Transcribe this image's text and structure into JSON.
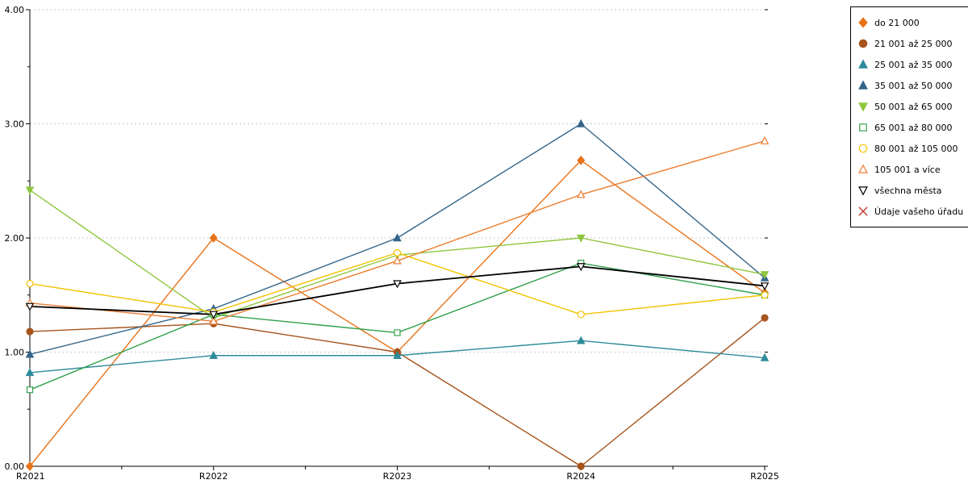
{
  "chart_data": {
    "type": "line",
    "x": [
      "R2021",
      "R2022",
      "R2023",
      "R2024",
      "R2025"
    ],
    "ylim": [
      0,
      4
    ],
    "yticks": [
      0,
      1,
      2,
      3,
      4
    ],
    "ytick_labels": [
      "0.00",
      "1.00",
      "2.00",
      "3.00",
      "4.00"
    ],
    "grid": "horizontal-dotted",
    "legend_position": "top-right",
    "series": [
      {
        "name": "do 21 000",
        "color": "#E8731A",
        "marker": "diamond",
        "fill": true,
        "values": [
          0.0,
          2.0,
          1.0,
          2.68,
          1.52
        ]
      },
      {
        "name": "21 001 až 25 000",
        "color": "#A6541C",
        "marker": "circle",
        "fill": true,
        "values": [
          1.18,
          1.25,
          1.0,
          0.0,
          1.3
        ]
      },
      {
        "name": "25 001 až 35 000",
        "color": "#2E8B9A",
        "marker": "triangle-up",
        "fill": true,
        "values": [
          0.82,
          0.97,
          0.97,
          1.1,
          0.95
        ]
      },
      {
        "name": "35 001 až 50 000",
        "color": "#33658A",
        "marker": "triangle-up",
        "fill": true,
        "values": [
          0.98,
          1.38,
          2.0,
          3.0,
          1.65
        ]
      },
      {
        "name": "50 001 až 65 000",
        "color": "#8FC63E",
        "marker": "triangle-down",
        "fill": true,
        "values": [
          2.42,
          1.3,
          1.85,
          2.0,
          1.68
        ]
      },
      {
        "name": "65 001 až 80 000",
        "color": "#2FA04B",
        "marker": "square",
        "fill": false,
        "values": [
          0.67,
          1.33,
          1.17,
          1.78,
          1.5
        ]
      },
      {
        "name": "80 001 až 105 000",
        "color": "#F2C200",
        "marker": "circle",
        "fill": false,
        "values": [
          1.6,
          1.35,
          1.87,
          1.33,
          1.5
        ]
      },
      {
        "name": "105 001 a více",
        "color": "#ED7D31",
        "marker": "triangle-up",
        "fill": false,
        "values": [
          1.43,
          1.27,
          1.8,
          2.38,
          2.85
        ]
      },
      {
        "name": "všechna města",
        "color": "#000000",
        "marker": "triangle-down",
        "fill": false,
        "values": [
          1.4,
          1.33,
          1.6,
          1.75,
          1.58
        ]
      },
      {
        "name": "Údaje vašeho úřadu",
        "color": "#C0392B",
        "marker": "x",
        "fill": false,
        "values": []
      }
    ]
  }
}
